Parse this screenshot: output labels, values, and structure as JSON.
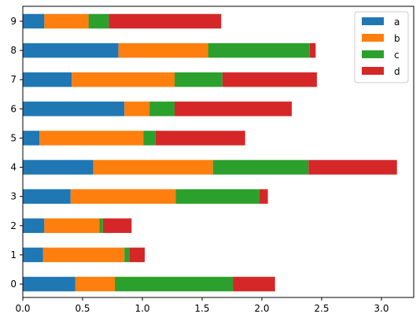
{
  "chart_data": {
    "type": "bar",
    "orientation": "horizontal",
    "stacked": true,
    "categories": [
      "0",
      "1",
      "2",
      "3",
      "4",
      "5",
      "6",
      "7",
      "8",
      "9"
    ],
    "series": [
      {
        "name": "a",
        "color": "#1f77b4",
        "values": [
          0.44,
          0.17,
          0.18,
          0.4,
          0.59,
          0.14,
          0.85,
          0.41,
          0.8,
          0.18
        ]
      },
      {
        "name": "b",
        "color": "#ff7f0e",
        "values": [
          0.33,
          0.68,
          0.46,
          0.88,
          1.0,
          0.87,
          0.21,
          0.86,
          0.75,
          0.37
        ]
      },
      {
        "name": "c",
        "color": "#2ca02c",
        "values": [
          0.99,
          0.04,
          0.03,
          0.7,
          0.8,
          0.1,
          0.21,
          0.4,
          0.85,
          0.17
        ]
      },
      {
        "name": "d",
        "color": "#d62728",
        "values": [
          0.35,
          0.13,
          0.24,
          0.07,
          0.74,
          0.75,
          0.98,
          0.79,
          0.05,
          0.94
        ]
      }
    ],
    "xlim": [
      0,
      3.27
    ],
    "xticks": [
      "0.0",
      "0.5",
      "1.0",
      "1.5",
      "2.0",
      "2.5",
      "3.0"
    ],
    "xtick_values": [
      0,
      0.5,
      1.0,
      1.5,
      2.0,
      2.5,
      3.0
    ],
    "grid": false,
    "legend": "top-right"
  }
}
